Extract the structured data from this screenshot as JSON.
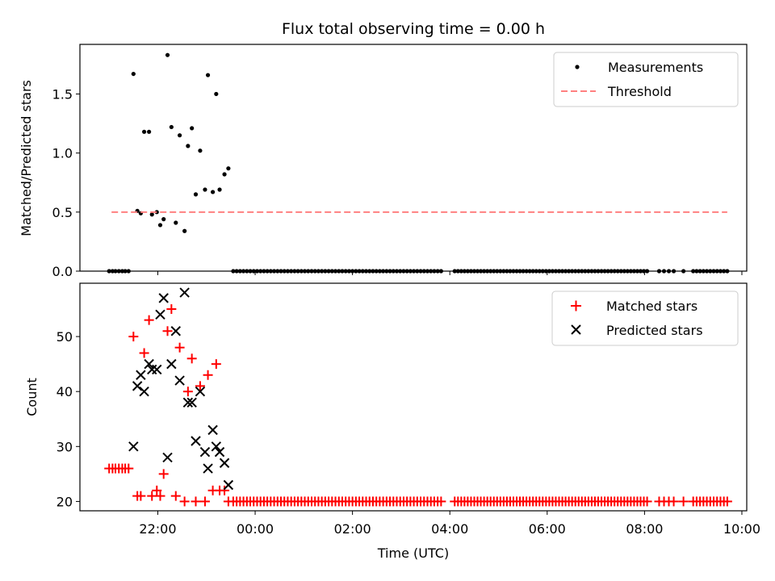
{
  "chart_data": [
    {
      "type": "scatter",
      "title": "Flux total observing time = 0.00 h",
      "xlabel": "",
      "ylabel": "Matched/Predicted stars",
      "x_unit": "hours from 00:00 UTC (data axis in time)",
      "xlim": [
        -3.6,
        10.1
      ],
      "ylim": [
        0.0,
        1.92
      ],
      "yticks": [
        0.0,
        0.5,
        1.0,
        1.5
      ],
      "yticklabels": [
        "0.0",
        "0.5",
        "1.0",
        "1.5"
      ],
      "legend_position": "top-right",
      "legend": [
        "Measurements",
        "Threshold"
      ],
      "series": [
        {
          "name": "Measurements",
          "style": "black-dot",
          "color": "#000000",
          "points": [
            [
              -3.0,
              0.0
            ],
            [
              -2.93,
              0.0
            ],
            [
              -2.87,
              0.0
            ],
            [
              -2.8,
              0.0
            ],
            [
              -2.73,
              0.0
            ],
            [
              -2.67,
              0.0
            ],
            [
              -2.6,
              0.0
            ],
            [
              -2.5,
              1.67
            ],
            [
              -2.42,
              0.51
            ],
            [
              -2.35,
              0.49
            ],
            [
              -2.28,
              1.18
            ],
            [
              -2.18,
              1.18
            ],
            [
              -2.12,
              0.48
            ],
            [
              -2.02,
              0.5
            ],
            [
              -1.95,
              0.39
            ],
            [
              -1.88,
              0.44
            ],
            [
              -1.8,
              1.83
            ],
            [
              -1.72,
              1.22
            ],
            [
              -1.63,
              0.41
            ],
            [
              -1.55,
              1.15
            ],
            [
              -1.45,
              0.34
            ],
            [
              -1.38,
              1.06
            ],
            [
              -1.3,
              1.21
            ],
            [
              -1.22,
              0.65
            ],
            [
              -1.13,
              1.02
            ],
            [
              -1.03,
              0.69
            ],
            [
              -0.97,
              1.66
            ],
            [
              -0.87,
              0.67
            ],
            [
              -0.8,
              1.5
            ],
            [
              -0.73,
              0.69
            ],
            [
              -0.63,
              0.82
            ],
            [
              -0.55,
              0.87
            ]
          ]
        },
        {
          "name": "Threshold",
          "style": "dashed-line",
          "color": "#ff8080",
          "x_range": [
            -2.95,
            9.7
          ],
          "value": 0.5
        }
      ]
    },
    {
      "type": "scatter",
      "title": "",
      "xlabel": "Time (UTC)",
      "ylabel": "Count",
      "x_unit": "hours from 00:00 UTC (data axis in time)",
      "xlim": [
        -3.6,
        10.1
      ],
      "ylim": [
        18.3,
        59.7
      ],
      "yticks": [
        20,
        30,
        40,
        50
      ],
      "yticklabels": [
        "20",
        "30",
        "40",
        "50"
      ],
      "xticks": [
        -2,
        0,
        2,
        4,
        6,
        8,
        10
      ],
      "xticklabels": [
        "22:00",
        "00:00",
        "02:00",
        "04:00",
        "06:00",
        "08:00",
        "10:00"
      ],
      "legend_position": "top-right",
      "legend": [
        "Matched stars",
        "Predicted stars"
      ],
      "series": [
        {
          "name": "Matched stars",
          "style": "red-plus",
          "color": "#ff0000",
          "points": [
            [
              -3.0,
              26
            ],
            [
              -2.93,
              26
            ],
            [
              -2.87,
              26
            ],
            [
              -2.8,
              26
            ],
            [
              -2.73,
              26
            ],
            [
              -2.67,
              26
            ],
            [
              -2.6,
              26
            ],
            [
              -2.5,
              50
            ],
            [
              -2.42,
              21
            ],
            [
              -2.35,
              21
            ],
            [
              -2.28,
              47
            ],
            [
              -2.18,
              53
            ],
            [
              -2.12,
              21
            ],
            [
              -2.02,
              22
            ],
            [
              -1.95,
              21
            ],
            [
              -1.88,
              25
            ],
            [
              -1.8,
              51
            ],
            [
              -1.72,
              55
            ],
            [
              -1.63,
              21
            ],
            [
              -1.55,
              48
            ],
            [
              -1.45,
              20
            ],
            [
              -1.38,
              40
            ],
            [
              -1.3,
              46
            ],
            [
              -1.22,
              20
            ],
            [
              -1.13,
              41
            ],
            [
              -1.03,
              20
            ],
            [
              -0.97,
              43
            ],
            [
              -0.87,
              22
            ],
            [
              -0.8,
              45
            ],
            [
              -0.73,
              22
            ],
            [
              -0.63,
              22
            ],
            [
              -0.55,
              20
            ]
          ]
        },
        {
          "name": "Predicted stars",
          "style": "black-x",
          "color": "#000000",
          "points": [
            [
              -2.5,
              30
            ],
            [
              -2.42,
              41
            ],
            [
              -2.35,
              43
            ],
            [
              -2.28,
              40
            ],
            [
              -2.18,
              45
            ],
            [
              -2.12,
              44
            ],
            [
              -2.02,
              44
            ],
            [
              -1.95,
              54
            ],
            [
              -1.88,
              57
            ],
            [
              -1.8,
              28
            ],
            [
              -1.72,
              45
            ],
            [
              -1.63,
              51
            ],
            [
              -1.55,
              42
            ],
            [
              -1.45,
              58
            ],
            [
              -1.38,
              38
            ],
            [
              -1.3,
              38
            ],
            [
              -1.22,
              31
            ],
            [
              -1.13,
              40
            ],
            [
              -1.03,
              29
            ],
            [
              -0.97,
              26
            ],
            [
              -0.87,
              33
            ],
            [
              -0.8,
              30
            ],
            [
              -0.73,
              29
            ],
            [
              -0.63,
              27
            ],
            [
              -0.55,
              23
            ]
          ]
        }
      ]
    }
  ]
}
